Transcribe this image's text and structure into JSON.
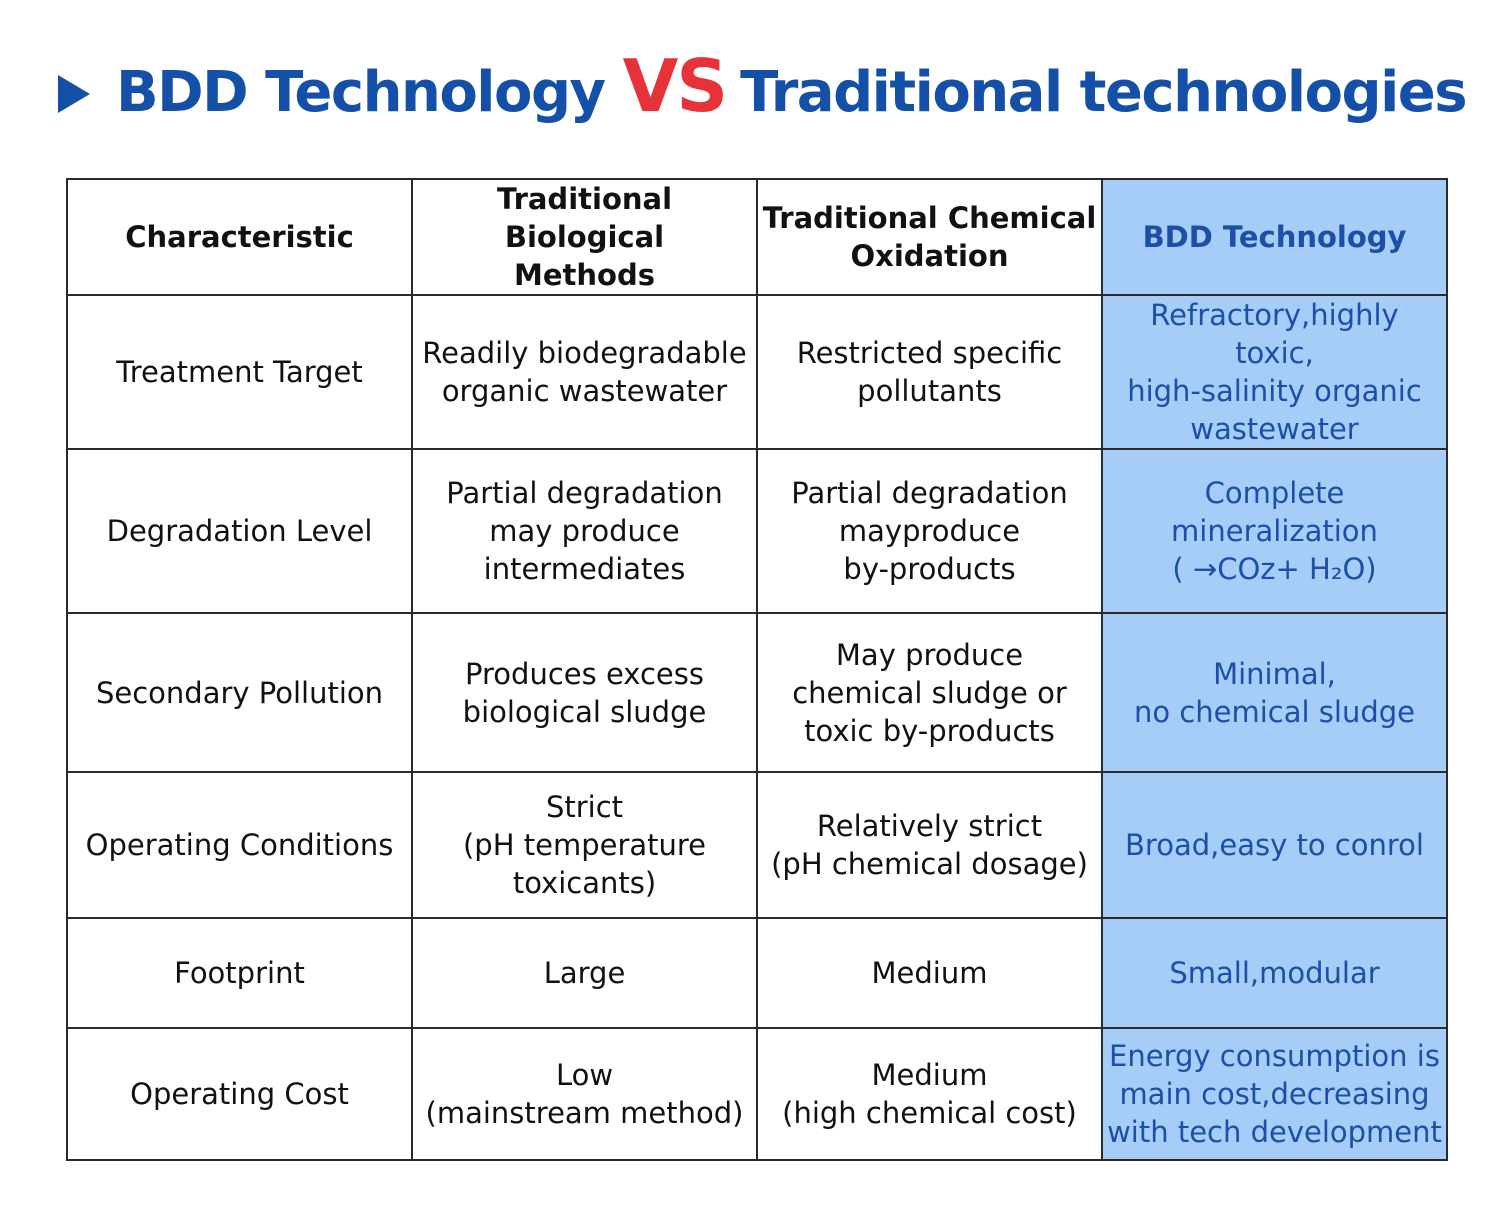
{
  "title": {
    "part1": "BDD Technology",
    "vs": "VS",
    "part2": "Traditional technologies"
  },
  "table": {
    "headers": [
      "Characteristic",
      "Traditional Biological\nMethods",
      "Traditional Chemical\nOxidation",
      "BDD Technology"
    ],
    "rows": [
      {
        "characteristic": "Treatment Target",
        "biological": "Readily biodegradable\norganic wastewater",
        "chemical": "Restricted specific\npollutants",
        "bdd": "Refractory,highly toxic,\nhigh-salinity organic\nwastewater"
      },
      {
        "characteristic": "Degradation Level",
        "biological": "Partial degradation\nmay produce\nintermediates",
        "chemical": "Partial degradation\nmayproduce\nby-products",
        "bdd": "Complete\nmineralization\n( →COz+ H₂O)"
      },
      {
        "characteristic": "Secondary Pollution",
        "biological": "Produces excess\nbiological sludge",
        "chemical": "May produce\nchemical sludge or\ntoxic by-products",
        "bdd": "Minimal,\nno chemical sludge"
      },
      {
        "characteristic": "Operating Conditions",
        "biological": "Strict\n(pH temperature\ntoxicants)",
        "chemical": "Relatively strict\n(pH chemical dosage)",
        "bdd": "Broad,easy to conrol"
      },
      {
        "characteristic": "Footprint",
        "biological": "Large",
        "chemical": "Medium",
        "bdd": "Small,modular"
      },
      {
        "characteristic": "Operating Cost",
        "biological": "Low\n(mainstream method)",
        "chemical": "Medium\n(high chemical cost)",
        "bdd": "Energy consumption is\nmain cost,decreasing\nwith tech development"
      }
    ]
  },
  "colors": {
    "title_blue": "#1450a8",
    "vs_red": "#e8323a",
    "bdd_column_bg": "#a6cdf7",
    "bdd_column_text": "#1c4fa5"
  },
  "icons": {
    "title_marker": "play-triangle-icon"
  }
}
